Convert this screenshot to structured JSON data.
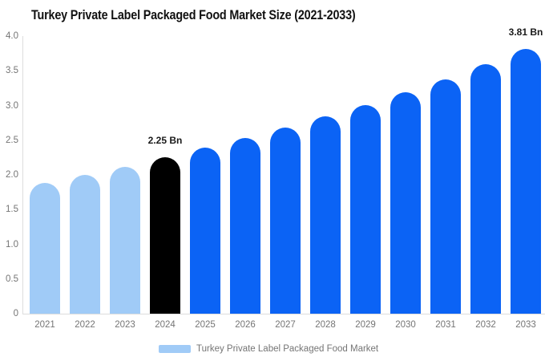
{
  "chart_data": {
    "type": "bar",
    "title": "Turkey Private Label Packaged Food Market Size (2021-2033)",
    "unit": "Bn",
    "categories": [
      "2021",
      "2022",
      "2023",
      "2024",
      "2025",
      "2026",
      "2027",
      "2028",
      "2029",
      "2030",
      "2031",
      "2032",
      "2033"
    ],
    "values": [
      1.89,
      2.0,
      2.12,
      2.25,
      2.39,
      2.53,
      2.68,
      2.84,
      3.01,
      3.19,
      3.38,
      3.59,
      3.81
    ],
    "bar_colors": [
      "#A0CBF7",
      "#A0CBF7",
      "#A0CBF7",
      "#000000",
      "#0B63F5",
      "#0B63F5",
      "#0B63F5",
      "#0B63F5",
      "#0B63F5",
      "#0B63F5",
      "#0B63F5",
      "#0B63F5",
      "#0B63F5"
    ],
    "data_labels": [
      {
        "category": "2024",
        "text": "2.25 Bn"
      },
      {
        "category": "2033",
        "text": "3.81 Bn"
      }
    ],
    "y_ticks": [
      "4.0",
      "3.5",
      "3.0",
      "2.5",
      "2.0",
      "1.5",
      "1.0",
      "0.5",
      "0"
    ],
    "ylim": [
      0,
      4.0
    ],
    "grid": false,
    "legend": {
      "label": "Turkey Private Label Packaged Food Market",
      "swatch_color": "#A0CBF7",
      "position": "bottom-center"
    },
    "colors": {
      "historical_bar": "#A0CBF7",
      "highlight_bar": "#000000",
      "forecast_bar": "#0B63F5",
      "axis_line": "#dddddd",
      "tick_text": "#757575",
      "title_text": "#111111"
    }
  }
}
